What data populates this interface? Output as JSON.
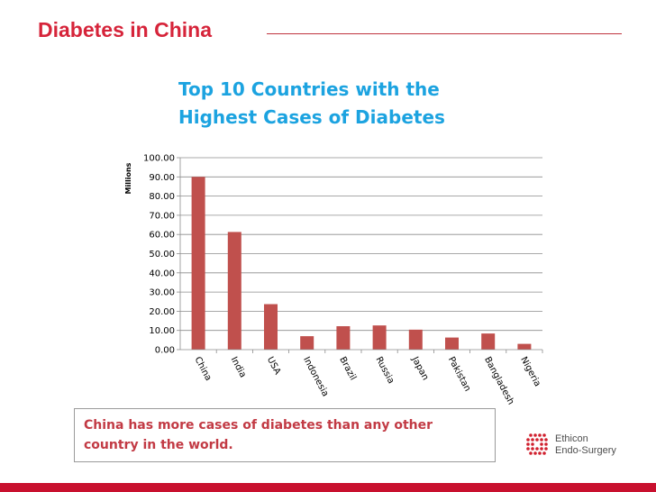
{
  "slide": {
    "title": "Diabetes in China",
    "callout": "China has more cases of diabetes than any other country in the world.",
    "logo": {
      "line1": "Ethicon",
      "line2": "Endo-Surgery"
    }
  },
  "colors": {
    "title": "#d6243a",
    "chart_title": "#1ca3e0",
    "bar": "#c0504d",
    "callout_text": "#c23a44",
    "footer": "#c8102e"
  },
  "chart_data": {
    "type": "bar",
    "title_lines": [
      "Top 10 Countries with the",
      "Highest Cases of Diabetes"
    ],
    "ylabel": "Millions",
    "xlabel": "",
    "categories": [
      "China",
      "India",
      "USA",
      "Indonesia",
      "Brazil",
      "Russia",
      "Japan",
      "Pakistan",
      "Bangladesh",
      "Nigeria"
    ],
    "values": [
      90.0,
      61.3,
      23.7,
      7.0,
      12.2,
      12.6,
      10.4,
      6.3,
      8.4,
      3.0
    ],
    "ylim": [
      0,
      100
    ],
    "yticks": [
      "0.00",
      "10.00",
      "20.00",
      "30.00",
      "40.00",
      "50.00",
      "60.00",
      "70.00",
      "80.00",
      "90.00",
      "100.00"
    ],
    "grid": true,
    "legend": "none"
  }
}
